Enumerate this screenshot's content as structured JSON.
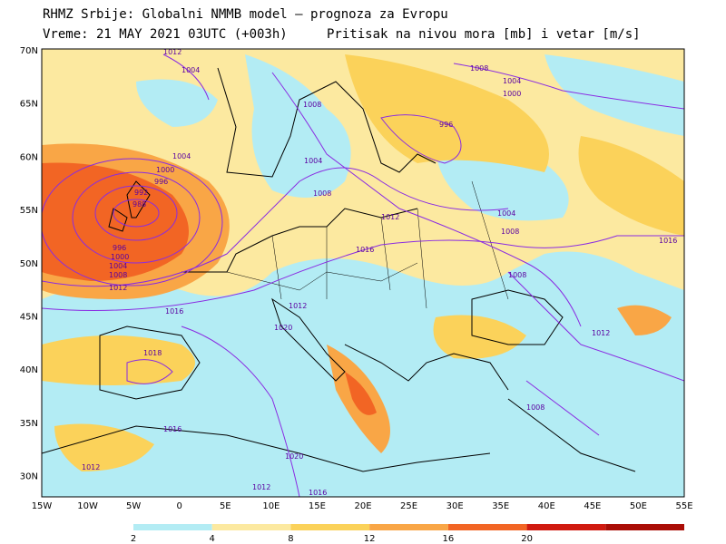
{
  "header": {
    "line1": "RHMZ Srbije: Globalni NMMB model — prognoza za Evropu",
    "line2_left": "Vreme: 21 MAY 2021 03UTC (+003h)",
    "line2_right": "Pritisak na nivou mora [mb] i vetar [m/s]"
  },
  "axes": {
    "lat_labels": [
      "70N",
      "65N",
      "60N",
      "55N",
      "50N",
      "45N",
      "40N",
      "35N",
      "30N"
    ],
    "lon_labels": [
      "15W",
      "10W",
      "5W",
      "0",
      "5E",
      "10E",
      "15E",
      "20E",
      "25E",
      "30E",
      "35E",
      "40E",
      "45E",
      "50E",
      "55E"
    ]
  },
  "legend": {
    "values": [
      "2",
      "4",
      "8",
      "12",
      "16",
      "20"
    ],
    "colors": [
      "#b3ecf4",
      "#fce9a0",
      "#fbd25a",
      "#f9a646",
      "#f26524",
      "#d01a10",
      "#aa0d06"
    ]
  },
  "isobars": [
    {
      "label": "1012"
    },
    {
      "label": "1004"
    },
    {
      "label": "1008"
    },
    {
      "label": "1000"
    },
    {
      "label": "996"
    },
    {
      "label": "992"
    },
    {
      "label": "988"
    },
    {
      "label": "1016"
    },
    {
      "label": "1020"
    },
    {
      "label": "1018"
    }
  ]
}
